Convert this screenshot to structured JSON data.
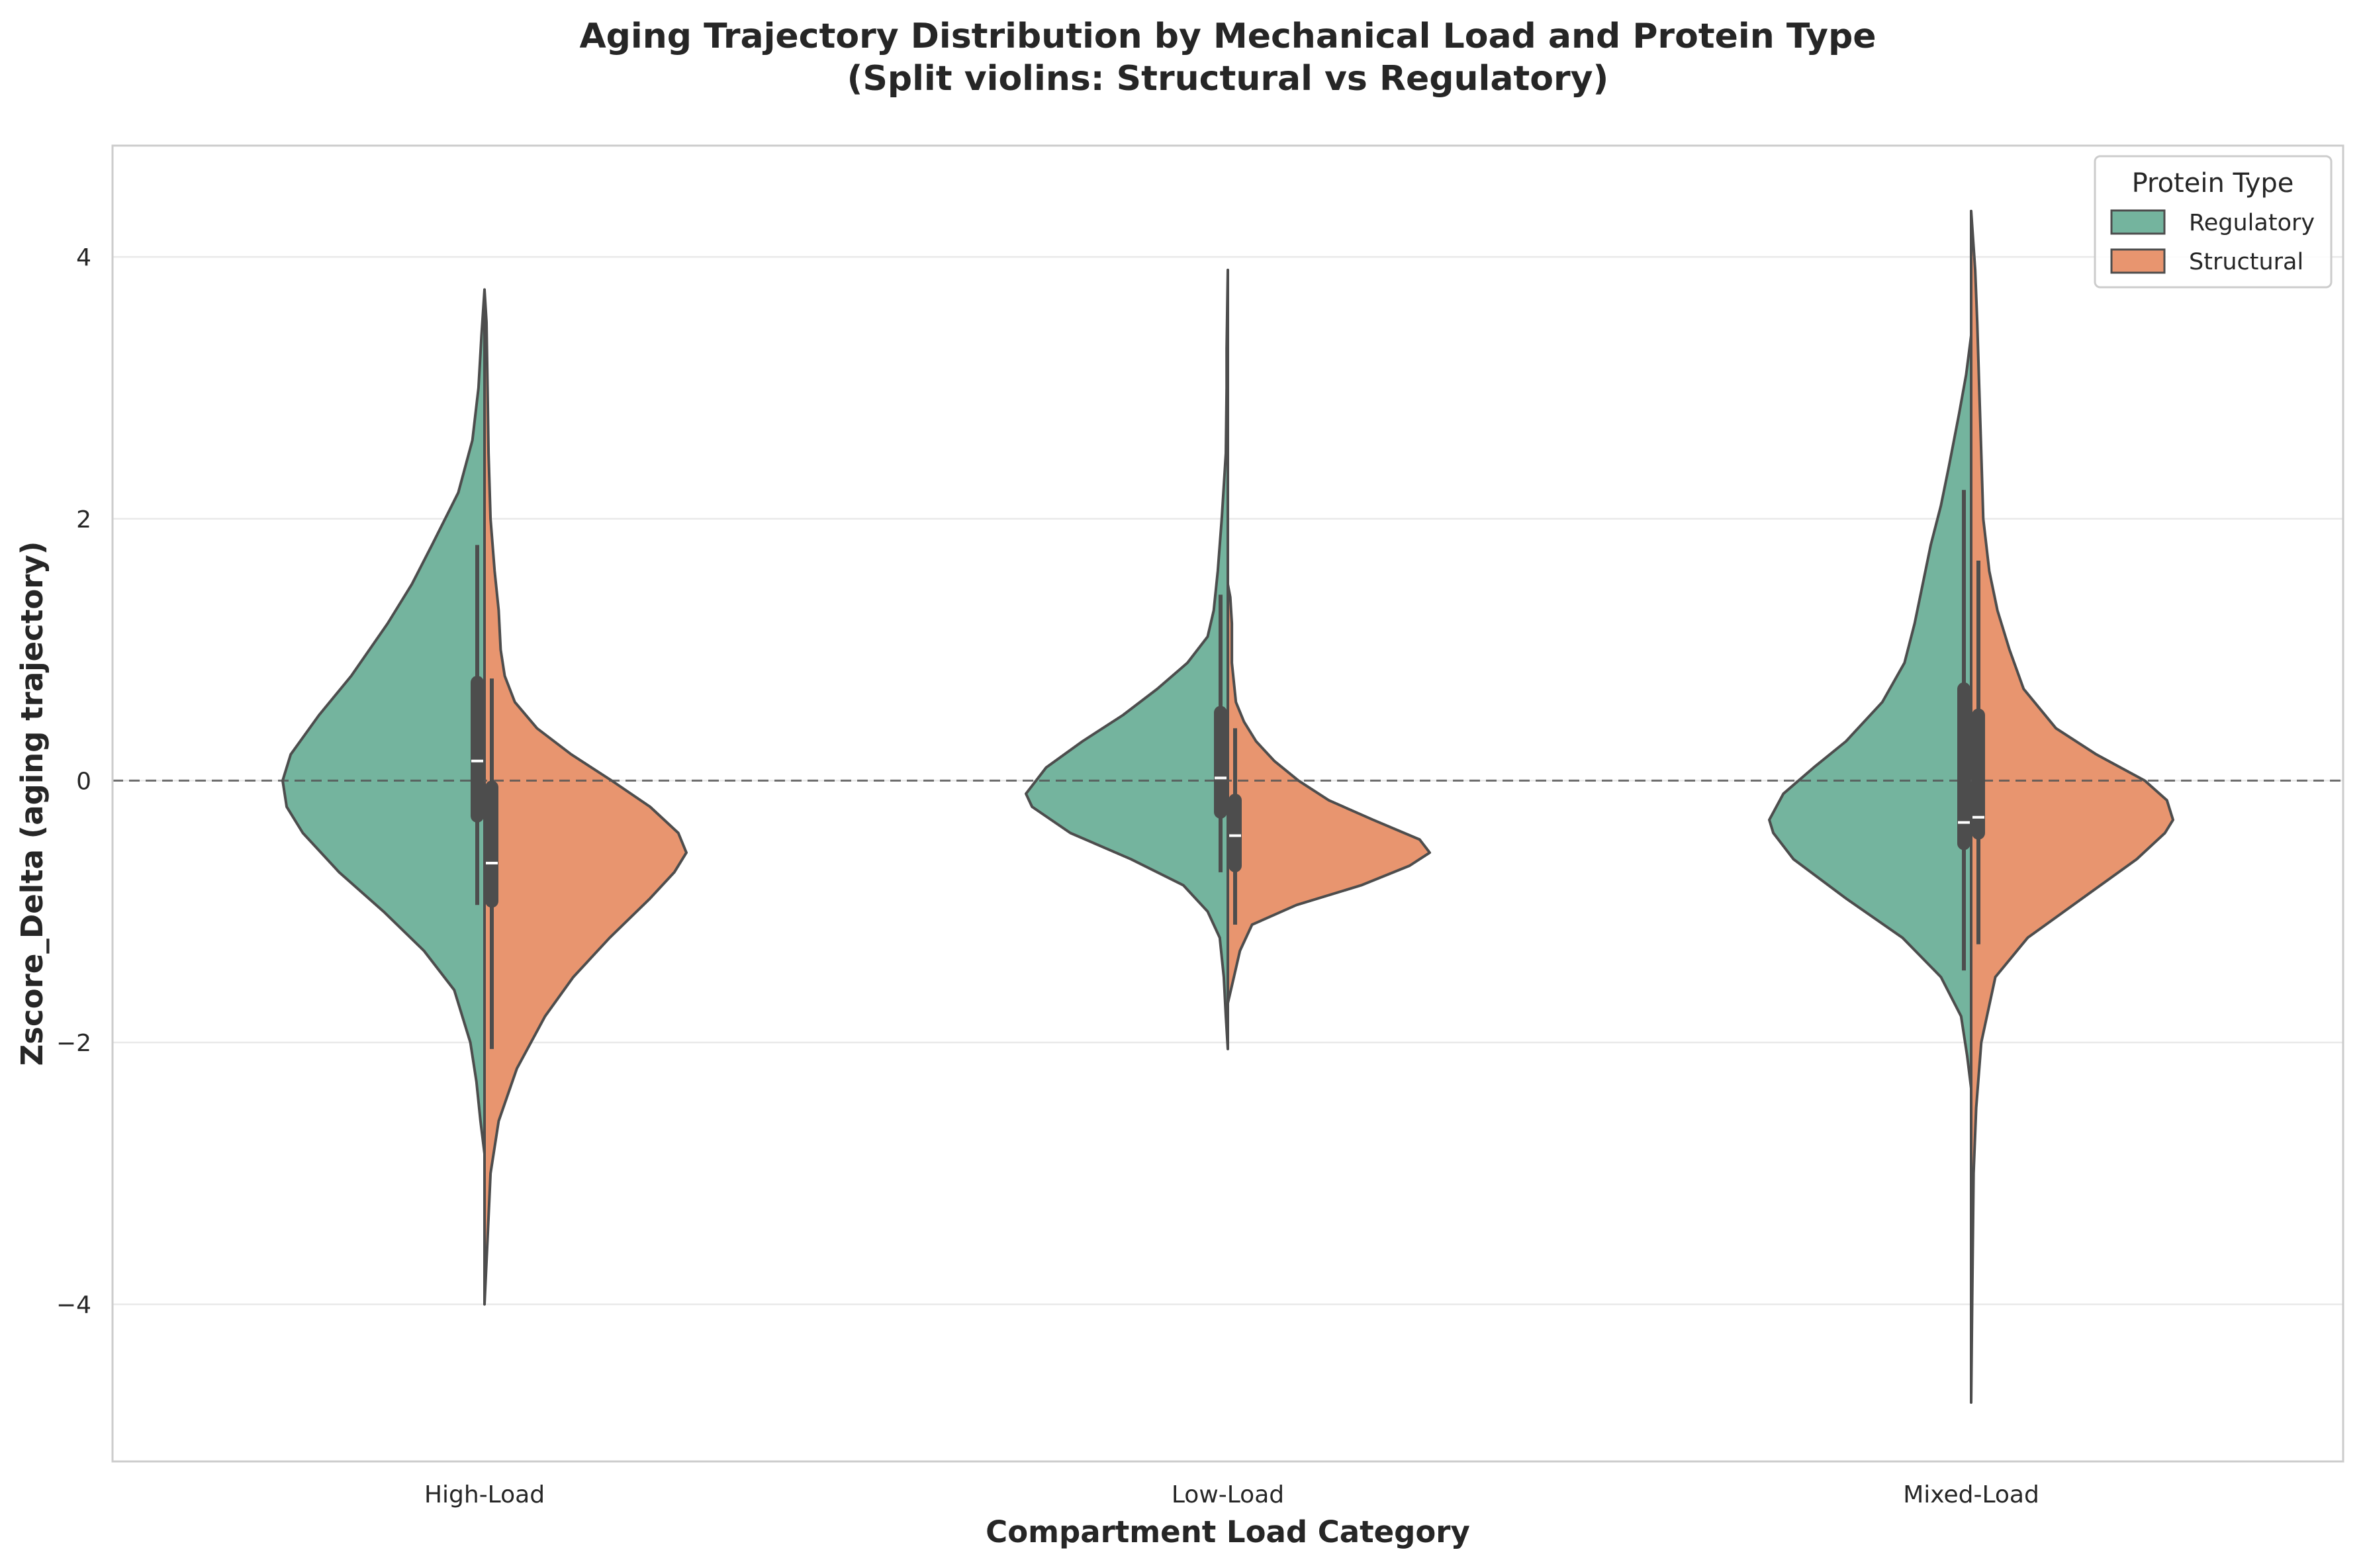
{
  "chart_data": {
    "type": "violin",
    "split": true,
    "title": "Aging Trajectory Distribution by Mechanical Load and Protein Type",
    "subtitle": "(Split violins: Structural vs Regulatory)",
    "xlabel": "Compartment Load Category",
    "ylabel": "Zscore_Delta (aging trajectory)",
    "ylim": [
      -5.2,
      4.85
    ],
    "yticks": [
      -4,
      -2,
      0,
      2,
      4
    ],
    "ytick_labels": [
      "−4",
      "−2",
      "0",
      "2",
      "4"
    ],
    "grid": "horizontal",
    "reference_line": {
      "y": 0,
      "style": "dashed"
    },
    "categories": [
      "High-Load",
      "Low-Load",
      "Mixed-Load"
    ],
    "legend": {
      "title": "Protein Type",
      "placement": "top-right",
      "entries": [
        {
          "name": "Regulatory",
          "color": "#74b49e"
        },
        {
          "name": "Structural",
          "color": "#e8956f"
        }
      ]
    },
    "series": [
      {
        "name": "Regulatory",
        "side": "left",
        "color": "#74b49e",
        "groups": [
          {
            "category": "High-Load",
            "density": [
              [
                -2.85,
                0.0
              ],
              [
                -2.6,
                0.02
              ],
              [
                -2.3,
                0.04
              ],
              [
                -2.0,
                0.07
              ],
              [
                -1.6,
                0.15
              ],
              [
                -1.3,
                0.3
              ],
              [
                -1.0,
                0.5
              ],
              [
                -0.7,
                0.72
              ],
              [
                -0.4,
                0.9
              ],
              [
                -0.2,
                0.98
              ],
              [
                0.0,
                1.0
              ],
              [
                0.2,
                0.96
              ],
              [
                0.5,
                0.82
              ],
              [
                0.8,
                0.66
              ],
              [
                1.2,
                0.48
              ],
              [
                1.5,
                0.36
              ],
              [
                1.8,
                0.26
              ],
              [
                2.2,
                0.13
              ],
              [
                2.6,
                0.06
              ],
              [
                3.0,
                0.03
              ],
              [
                3.4,
                0.015
              ],
              [
                3.75,
                0.0
              ]
            ],
            "median": 0.15,
            "q1": -0.27,
            "q3": 0.75,
            "whisker_low": -0.95,
            "whisker_high": 1.8
          },
          {
            "category": "Low-Load",
            "density": [
              [
                -2.05,
                0.0
              ],
              [
                -1.8,
                0.01
              ],
              [
                -1.5,
                0.02
              ],
              [
                -1.2,
                0.04
              ],
              [
                -1.0,
                0.1
              ],
              [
                -0.8,
                0.22
              ],
              [
                -0.6,
                0.48
              ],
              [
                -0.4,
                0.78
              ],
              [
                -0.2,
                0.97
              ],
              [
                -0.1,
                1.0
              ],
              [
                0.1,
                0.9
              ],
              [
                0.3,
                0.72
              ],
              [
                0.5,
                0.52
              ],
              [
                0.7,
                0.35
              ],
              [
                0.9,
                0.2
              ],
              [
                1.1,
                0.1
              ],
              [
                1.3,
                0.07
              ],
              [
                1.6,
                0.05
              ],
              [
                2.0,
                0.03
              ],
              [
                2.5,
                0.01
              ],
              [
                3.0,
                0.006
              ],
              [
                3.3,
                0.006
              ],
              [
                3.6,
                0.003
              ],
              [
                3.9,
                0.0
              ]
            ],
            "median": 0.02,
            "q1": -0.24,
            "q3": 0.52,
            "whisker_low": -0.7,
            "whisker_high": 1.42
          },
          {
            "category": "Mixed-Load",
            "density": [
              [
                -2.35,
                0.0
              ],
              [
                -2.1,
                0.02
              ],
              [
                -1.8,
                0.05
              ],
              [
                -1.5,
                0.15
              ],
              [
                -1.2,
                0.34
              ],
              [
                -0.9,
                0.62
              ],
              [
                -0.6,
                0.88
              ],
              [
                -0.4,
                0.98
              ],
              [
                -0.3,
                1.0
              ],
              [
                -0.1,
                0.93
              ],
              [
                0.1,
                0.78
              ],
              [
                0.3,
                0.62
              ],
              [
                0.6,
                0.44
              ],
              [
                0.9,
                0.33
              ],
              [
                1.2,
                0.28
              ],
              [
                1.5,
                0.24
              ],
              [
                1.8,
                0.2
              ],
              [
                2.1,
                0.15
              ],
              [
                2.4,
                0.11
              ],
              [
                2.8,
                0.06
              ],
              [
                3.1,
                0.025
              ],
              [
                3.4,
                0.0
              ]
            ],
            "median": -0.32,
            "q1": -0.48,
            "q3": 0.7,
            "whisker_low": -1.45,
            "whisker_high": 2.22
          }
        ]
      },
      {
        "name": "Structural",
        "side": "right",
        "color": "#e8956f",
        "groups": [
          {
            "category": "High-Load",
            "density": [
              [
                -4.0,
                0.0
              ],
              [
                -3.5,
                0.015
              ],
              [
                -3.0,
                0.03
              ],
              [
                -2.6,
                0.07
              ],
              [
                -2.2,
                0.16
              ],
              [
                -1.8,
                0.3
              ],
              [
                -1.5,
                0.44
              ],
              [
                -1.2,
                0.62
              ],
              [
                -0.9,
                0.82
              ],
              [
                -0.7,
                0.94
              ],
              [
                -0.55,
                1.0
              ],
              [
                -0.4,
                0.96
              ],
              [
                -0.2,
                0.82
              ],
              [
                0.0,
                0.63
              ],
              [
                0.2,
                0.43
              ],
              [
                0.4,
                0.26
              ],
              [
                0.6,
                0.15
              ],
              [
                0.8,
                0.1
              ],
              [
                1.0,
                0.08
              ],
              [
                1.3,
                0.07
              ],
              [
                1.6,
                0.05
              ],
              [
                2.0,
                0.03
              ],
              [
                2.5,
                0.02
              ],
              [
                3.0,
                0.015
              ],
              [
                3.5,
                0.01
              ],
              [
                3.75,
                0.0
              ]
            ],
            "median": -0.63,
            "q1": -0.92,
            "q3": -0.05,
            "whisker_low": -2.05,
            "whisker_high": 0.78
          },
          {
            "category": "Low-Load",
            "density": [
              [
                -1.7,
                0.0
              ],
              [
                -1.5,
                0.03
              ],
              [
                -1.3,
                0.06
              ],
              [
                -1.1,
                0.12
              ],
              [
                -0.95,
                0.34
              ],
              [
                -0.8,
                0.66
              ],
              [
                -0.65,
                0.9
              ],
              [
                -0.55,
                1.0
              ],
              [
                -0.45,
                0.95
              ],
              [
                -0.3,
                0.72
              ],
              [
                -0.15,
                0.5
              ],
              [
                0.0,
                0.35
              ],
              [
                0.15,
                0.23
              ],
              [
                0.3,
                0.14
              ],
              [
                0.45,
                0.08
              ],
              [
                0.6,
                0.04
              ],
              [
                0.9,
                0.02
              ],
              [
                1.2,
                0.02
              ],
              [
                1.4,
                0.012
              ],
              [
                1.5,
                0.0
              ]
            ],
            "median": -0.42,
            "q1": -0.65,
            "q3": -0.15,
            "whisker_low": -1.1,
            "whisker_high": 0.4
          },
          {
            "category": "Mixed-Load",
            "density": [
              [
                -4.75,
                0.0
              ],
              [
                -4.0,
                0.005
              ],
              [
                -3.0,
                0.012
              ],
              [
                -2.5,
                0.025
              ],
              [
                -2.0,
                0.05
              ],
              [
                -1.5,
                0.12
              ],
              [
                -1.2,
                0.28
              ],
              [
                -0.9,
                0.55
              ],
              [
                -0.6,
                0.82
              ],
              [
                -0.4,
                0.96
              ],
              [
                -0.3,
                1.0
              ],
              [
                -0.15,
                0.97
              ],
              [
                0.0,
                0.86
              ],
              [
                0.2,
                0.62
              ],
              [
                0.4,
                0.42
              ],
              [
                0.7,
                0.26
              ],
              [
                1.0,
                0.19
              ],
              [
                1.3,
                0.13
              ],
              [
                1.6,
                0.09
              ],
              [
                2.0,
                0.06
              ],
              [
                2.5,
                0.05
              ],
              [
                3.0,
                0.04
              ],
              [
                3.5,
                0.03
              ],
              [
                3.9,
                0.02
              ],
              [
                4.35,
                0.0
              ]
            ],
            "median": -0.28,
            "q1": -0.4,
            "q3": 0.5,
            "whisker_low": -1.25,
            "whisker_high": 1.68
          }
        ]
      }
    ]
  }
}
